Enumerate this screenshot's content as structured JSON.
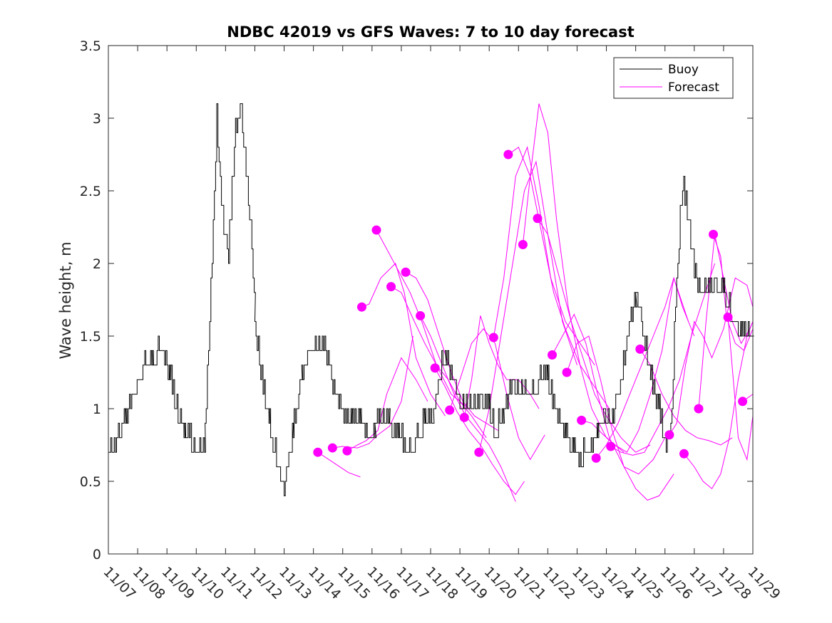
{
  "chart_data": {
    "type": "line",
    "title": "NDBC 42019 vs GFS Waves: 7 to 10 day forecast",
    "xlabel": "",
    "ylabel": "Wave height, m",
    "xlim": [
      0,
      22
    ],
    "ylim": [
      0,
      3.5
    ],
    "yticks": [
      0,
      0.5,
      1,
      1.5,
      2,
      2.5,
      3,
      3.5
    ],
    "ytick_labels": [
      "0",
      "0.5",
      "1",
      "1.5",
      "2",
      "2.5",
      "3",
      "3.5"
    ],
    "xtick_labels": [
      "11/07",
      "11/08",
      "11/09",
      "11/10",
      "11/11",
      "11/12",
      "11/13",
      "11/14",
      "11/15",
      "11/16",
      "11/17",
      "11/18",
      "11/19",
      "11/20",
      "11/21",
      "11/22",
      "11/23",
      "11/24",
      "11/25",
      "11/26",
      "11/27",
      "11/28",
      "11/29"
    ],
    "legend": {
      "position": "top-right",
      "entries": [
        {
          "label": "Buoy",
          "color": "#000000"
        },
        {
          "label": "Forecast",
          "color": "#ff00ff"
        }
      ]
    },
    "colors": {
      "buoy": "#000000",
      "forecast": "#ff00ff"
    },
    "buoy": {
      "name": "Buoy",
      "x": [
        0,
        0.3,
        0.6,
        0.9,
        1.2,
        1.5,
        1.8,
        2.1,
        2.3,
        2.6,
        2.8,
        3.0,
        3.3,
        3.5,
        3.7,
        3.9,
        4.1,
        4.3,
        4.5,
        4.7,
        4.9,
        5.0,
        5.2,
        5.5,
        5.8,
        6.0,
        6.3,
        6.6,
        6.9,
        7.1,
        7.3,
        7.5,
        7.7,
        8.0,
        8.3,
        8.6,
        8.9,
        9.1,
        9.3,
        9.6,
        9.9,
        10.2,
        10.5,
        10.8,
        11.1,
        11.3,
        11.5,
        11.8,
        12.1,
        12.4,
        12.7,
        13.0,
        13.2,
        13.5,
        13.8,
        14.1,
        14.4,
        14.7,
        15.0,
        15.3,
        15.6,
        15.9,
        16.1,
        16.4,
        16.7,
        16.9,
        17.2,
        17.5,
        17.8,
        18.0,
        18.2,
        18.5,
        18.8,
        19.0,
        19.2,
        19.4,
        19.6,
        19.8,
        20.0,
        20.2,
        20.4,
        20.7,
        21.0,
        21.3,
        21.6,
        21.8,
        22.0
      ],
      "y": [
        0.65,
        0.75,
        0.9,
        1.1,
        1.25,
        1.3,
        1.4,
        1.2,
        1.0,
        0.8,
        0.75,
        0.7,
        0.75,
        1.8,
        2.95,
        2.25,
        2.0,
        2.8,
        3.1,
        2.6,
        2.1,
        1.6,
        1.2,
        0.85,
        0.6,
        0.4,
        0.8,
        1.2,
        1.4,
        1.35,
        1.45,
        1.3,
        1.1,
        0.95,
        0.85,
        0.9,
        0.8,
        0.85,
        0.9,
        0.85,
        0.8,
        0.7,
        0.75,
        0.9,
        0.95,
        1.2,
        1.35,
        1.15,
        0.95,
        1.0,
        1.05,
        0.95,
        0.8,
        0.95,
        1.15,
        1.1,
        1.1,
        1.15,
        1.15,
        0.95,
        0.8,
        0.7,
        0.62,
        0.7,
        0.8,
        0.95,
        0.9,
        1.2,
        1.55,
        1.75,
        1.6,
        1.2,
        0.95,
        0.72,
        0.8,
        1.9,
        2.5,
        2.3,
        1.9,
        1.8,
        1.75,
        1.85,
        1.8,
        1.6,
        1.5,
        1.45,
        1.5
      ]
    },
    "forecasts": [
      {
        "x": [
          7.15,
          7.6,
          8.2,
          8.6
        ],
        "y": [
          0.7,
          0.64,
          0.56,
          0.53
        ]
      },
      {
        "x": [
          7.65,
          8.0,
          8.5,
          8.9,
          9.2,
          9.6,
          10.0,
          10.4
        ],
        "y": [
          0.73,
          0.74,
          0.73,
          0.76,
          0.82,
          0.88,
          1.05,
          1.5
        ]
      },
      {
        "x": [
          8.15,
          8.5,
          8.8,
          9.2,
          9.5,
          10.0,
          10.5,
          10.9
        ],
        "y": [
          0.71,
          0.75,
          0.78,
          0.85,
          1.1,
          1.35,
          1.2,
          1.05
        ]
      },
      {
        "x": [
          8.65,
          8.9,
          9.3,
          9.8,
          10.1,
          10.5,
          11.0,
          11.5
        ],
        "y": [
          1.7,
          1.72,
          1.9,
          2.0,
          1.8,
          1.35,
          1.1,
          0.95
        ]
      },
      {
        "x": [
          9.15,
          9.5,
          9.9,
          10.3,
          10.7,
          11.2,
          11.7,
          12.3
        ],
        "y": [
          2.23,
          2.1,
          1.95,
          1.8,
          1.6,
          1.3,
          1.1,
          1.0
        ]
      },
      {
        "x": [
          9.65,
          10.0,
          10.4,
          10.8,
          11.2,
          11.6,
          12.0,
          12.4,
          12.9
        ],
        "y": [
          1.84,
          1.8,
          1.62,
          1.45,
          1.3,
          1.2,
          1.05,
          0.95,
          0.8
        ]
      },
      {
        "x": [
          10.15,
          10.5,
          10.9,
          11.3,
          11.7,
          12.1,
          12.5,
          12.9,
          13.3
        ],
        "y": [
          1.94,
          1.9,
          1.75,
          1.5,
          1.25,
          1.05,
          0.95,
          0.9,
          0.85
        ]
      },
      {
        "x": [
          10.65,
          11.0,
          11.4,
          11.8,
          12.2,
          12.6,
          13.0,
          13.4,
          13.9
        ],
        "y": [
          1.64,
          1.5,
          1.3,
          1.1,
          0.95,
          0.85,
          0.75,
          0.6,
          0.36
        ]
      },
      {
        "x": [
          11.15,
          11.5,
          11.9,
          12.3,
          12.7,
          13.1,
          13.5,
          13.9,
          14.2
        ],
        "y": [
          1.28,
          1.15,
          0.98,
          0.85,
          0.75,
          0.62,
          0.5,
          0.41,
          0.5
        ]
      },
      {
        "x": [
          11.65,
          12.0,
          12.4,
          12.8,
          13.2,
          13.6,
          14.0,
          14.4,
          14.9
        ],
        "y": [
          0.99,
          1.2,
          1.45,
          1.55,
          1.45,
          1.1,
          0.8,
          0.65,
          0.82
        ]
      },
      {
        "x": [
          12.15,
          12.4,
          12.7,
          13.0,
          13.3,
          13.6,
          14.0,
          14.4,
          14.7
        ],
        "y": [
          0.94,
          1.2,
          1.64,
          1.45,
          1.3,
          1.2,
          1.2,
          1.1,
          1.0
        ]
      },
      {
        "x": [
          12.65,
          13.0,
          13.4,
          13.8,
          14.2,
          14.6,
          15.0,
          15.5,
          16.0
        ],
        "y": [
          0.7,
          1.0,
          1.5,
          2.0,
          2.5,
          2.7,
          2.2,
          1.6,
          1.3
        ]
      },
      {
        "x": [
          13.15,
          13.5,
          13.9,
          14.3,
          14.7,
          15.1,
          15.6,
          16.1,
          16.6
        ],
        "y": [
          1.49,
          1.9,
          2.6,
          2.8,
          2.4,
          1.9,
          1.6,
          1.45,
          1.3
        ]
      },
      {
        "x": [
          13.65,
          14.0,
          14.4,
          14.8,
          15.2,
          15.6,
          16.1,
          16.6,
          17.1
        ],
        "y": [
          2.75,
          2.8,
          2.6,
          2.2,
          1.8,
          1.55,
          1.3,
          1.15,
          1.0
        ]
      },
      {
        "x": [
          14.15,
          14.4,
          14.7,
          15.0,
          15.3,
          15.7,
          16.1,
          16.5,
          17.0,
          17.6
        ],
        "y": [
          2.13,
          2.6,
          3.1,
          2.9,
          2.3,
          1.7,
          1.3,
          1.0,
          0.8,
          0.7
        ]
      },
      {
        "x": [
          14.65,
          15.0,
          15.4,
          15.8,
          16.2,
          16.6,
          17.0,
          17.5,
          18.0,
          18.5
        ],
        "y": [
          2.31,
          2.2,
          1.9,
          1.6,
          1.35,
          1.1,
          0.95,
          0.8,
          0.7,
          0.75
        ]
      },
      {
        "x": [
          15.15,
          15.5,
          15.9,
          16.3,
          16.7,
          17.1,
          17.6,
          18.1,
          18.6,
          19.0
        ],
        "y": [
          1.37,
          1.5,
          1.65,
          1.45,
          1.1,
          0.8,
          0.6,
          0.55,
          0.65,
          0.8
        ]
      },
      {
        "x": [
          15.65,
          16.0,
          16.4,
          16.8,
          17.2,
          17.6,
          18.0,
          18.4,
          18.8,
          19.3
        ],
        "y": [
          1.25,
          1.45,
          1.5,
          1.2,
          0.85,
          0.6,
          0.45,
          0.37,
          0.4,
          0.55
        ]
      },
      {
        "x": [
          16.15,
          16.5,
          16.9,
          17.3,
          17.7,
          18.1,
          18.5,
          18.9,
          19.3,
          19.8
        ],
        "y": [
          0.92,
          0.9,
          0.82,
          0.75,
          0.7,
          0.85,
          1.1,
          1.4,
          1.9,
          1.6
        ]
      },
      {
        "x": [
          16.65,
          17.0,
          17.4,
          17.8,
          18.2,
          18.6,
          19.0,
          19.3,
          19.6,
          20.0
        ],
        "y": [
          0.66,
          0.75,
          0.9,
          1.1,
          1.3,
          1.5,
          1.7,
          1.9,
          1.7,
          1.5
        ]
      },
      {
        "x": [
          17.15,
          17.5,
          17.9,
          18.3,
          18.7,
          19.1,
          19.5,
          19.9,
          20.3,
          20.7
        ],
        "y": [
          0.74,
          0.7,
          0.68,
          0.7,
          0.85,
          1.0,
          1.2,
          1.5,
          1.75,
          2.0
        ]
      },
      {
        "x": [
          18.15,
          18.5,
          18.9,
          19.3,
          19.7,
          20.1,
          20.5,
          20.9,
          21.3
        ],
        "y": [
          1.41,
          1.3,
          1.1,
          0.95,
          0.85,
          0.8,
          0.78,
          0.75,
          0.8
        ]
      },
      {
        "x": [
          19.15,
          19.4,
          19.7,
          20.0,
          20.3,
          20.6,
          21.0,
          21.4,
          21.8,
          22.0
        ],
        "y": [
          0.82,
          0.9,
          1.3,
          1.6,
          1.5,
          1.35,
          1.55,
          1.9,
          1.85,
          1.7
        ]
      },
      {
        "x": [
          19.65,
          20.0,
          20.3,
          20.6,
          20.9,
          21.2,
          21.5,
          21.8,
          22.0
        ],
        "y": [
          0.69,
          0.6,
          0.5,
          0.45,
          0.55,
          0.8,
          1.2,
          1.5,
          1.6
        ]
      },
      {
        "x": [
          20.15,
          20.4,
          20.7,
          21.0,
          21.3,
          21.6,
          21.9,
          22.0
        ],
        "y": [
          1.0,
          1.6,
          2.2,
          1.9,
          1.6,
          1.45,
          1.55,
          1.6
        ]
      },
      {
        "x": [
          20.65,
          20.9,
          21.1,
          21.4,
          21.7,
          22.0
        ],
        "y": [
          2.2,
          2.05,
          1.63,
          1.45,
          1.4,
          1.55
        ]
      },
      {
        "x": [
          21.15,
          21.5,
          21.8,
          22.0
        ],
        "y": [
          1.63,
          0.8,
          0.65,
          0.95
        ]
      },
      {
        "x": [
          21.65,
          22.0
        ],
        "y": [
          1.05,
          1.1
        ]
      }
    ],
    "markers": {
      "x": [
        7.15,
        7.65,
        8.15,
        8.65,
        9.15,
        9.65,
        10.15,
        10.65,
        11.15,
        11.65,
        12.15,
        12.65,
        13.15,
        13.65,
        14.15,
        14.65,
        15.15,
        15.65,
        16.15,
        16.65,
        17.15,
        18.15,
        19.15,
        19.65,
        20.15,
        20.65,
        21.15,
        21.65
      ],
      "y": [
        0.7,
        0.73,
        0.71,
        1.7,
        2.23,
        1.84,
        1.94,
        1.64,
        1.28,
        0.99,
        0.94,
        0.7,
        1.49,
        2.75,
        2.13,
        2.31,
        1.37,
        1.25,
        0.92,
        0.66,
        0.74,
        1.41,
        0.82,
        0.69,
        1.0,
        2.2,
        1.63,
        1.05
      ]
    }
  }
}
